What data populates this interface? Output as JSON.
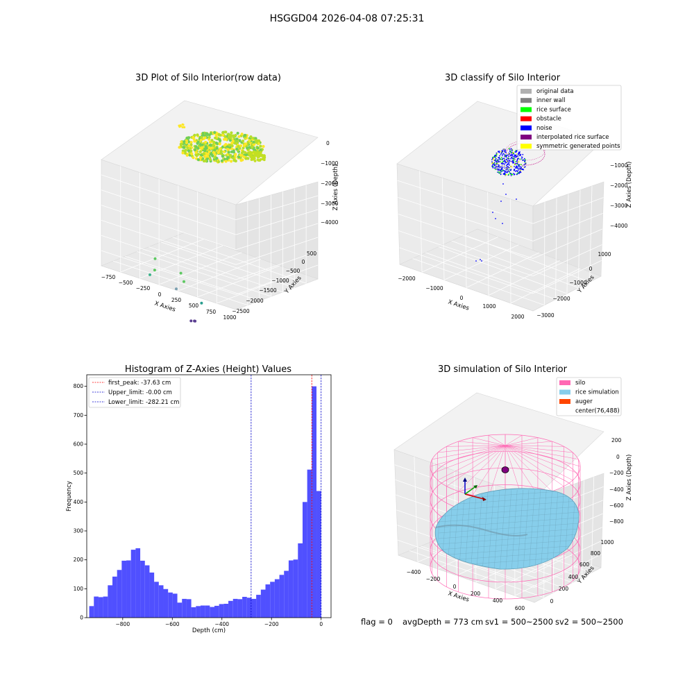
{
  "figure_title": "HSGGD04 2026-04-08 07:25:31",
  "footer": {
    "flag": "flag = 0",
    "avg_depth": "avgDepth = 773 cm",
    "sv1": "sv1 = 500~2500",
    "sv2": "sv2 = 500~2500"
  },
  "colors": {
    "histogram_bar": "#5050ff",
    "first_peak_line": "#ff0000",
    "limit_line": "#0000cc",
    "pane_back": "#f2f2f2",
    "pane_side": "#ebebeb",
    "pane_floor": "#e6e6e6",
    "silo": "#ff69b4",
    "rice_simulation": "#87ceeb",
    "auger": "#ff4500"
  },
  "chart_data": [
    {
      "type": "scatter",
      "projection": "3d",
      "title": "3D Plot of Silo Interior(row data)",
      "xlabel": "X Axies",
      "ylabel": "Y Axies",
      "zlabel": "Z Axies (Depth)",
      "x_ticks": [
        "−750",
        "−500",
        "−250",
        "0",
        "250",
        "500",
        "750",
        "1000"
      ],
      "y_ticks": [
        "500",
        "0",
        "−500",
        "−1000",
        "−1500",
        "−2000",
        "−2500"
      ],
      "z_ticks": [
        "0",
        "−1000",
        "−2000",
        "−3000",
        "−4000"
      ],
      "colormap": "viridis (by depth)",
      "surface_cluster": {
        "depth_range": [
          -300,
          0
        ],
        "colors": [
          "#fde725",
          "#b5de2b",
          "#6ece58"
        ]
      },
      "outlier_points": [
        {
          "x": 160,
          "y": -250,
          "z": -2300,
          "color": "#5ec962"
        },
        {
          "x": 40,
          "y": -500,
          "z": -2800,
          "color": "#5ec962"
        },
        {
          "x": 60,
          "y": -300,
          "z": -3200,
          "color": "#3bb28a"
        },
        {
          "x": 520,
          "y": -300,
          "z": -2650,
          "color": "#5ec962"
        },
        {
          "x": 520,
          "y": -400,
          "z": -3000,
          "color": "#5ec962"
        },
        {
          "x": 520,
          "y": -150,
          "z": -3600,
          "color": "#7a9fb0"
        },
        {
          "x": 600,
          "y": -800,
          "z": -3700,
          "color": "#2a9d8f"
        },
        {
          "x": -100,
          "y": -2000,
          "z": -4300,
          "color": "#5b3f91"
        },
        {
          "x": -50,
          "y": -2000,
          "z": -4250,
          "color": "#5b3f91"
        },
        {
          "x": -40,
          "y": -2000,
          "z": -4250,
          "color": "#5b3f91"
        }
      ]
    },
    {
      "type": "scatter",
      "projection": "3d",
      "title": "3D classify of Silo Interior",
      "xlabel": "X Axies",
      "ylabel": "Y Axies",
      "zlabel": "Z Axies (Depth)",
      "x_ticks": [
        "−2000",
        "−1000",
        "0",
        "1000",
        "2000"
      ],
      "y_ticks": [
        "1000",
        "0",
        "−1000",
        "−2000",
        "−3000"
      ],
      "z_ticks": [
        "0",
        "−1000",
        "−2000",
        "−3000",
        "−4000"
      ],
      "legend": [
        {
          "label": "original data",
          "color": "#b0b0b0"
        },
        {
          "label": "inner wall",
          "color": "#808080"
        },
        {
          "label": "rice surface",
          "color": "#00ff00"
        },
        {
          "label": "obstacle",
          "color": "#ff0000"
        },
        {
          "label": "noise",
          "color": "#0000ff"
        },
        {
          "label": "interpolated rice surface",
          "color": "#800080"
        },
        {
          "label": "symmetric generated points",
          "color": "#ffff00"
        }
      ],
      "legend_position": "upper right"
    },
    {
      "type": "bar",
      "title": "Histogram of Z-Axies (Height) Values",
      "xlabel": "Depth (cm)",
      "ylabel": "Frequency",
      "xlim": [
        -945,
        40
      ],
      "ylim": [
        0,
        840
      ],
      "x_ticks": [
        -800,
        -600,
        -400,
        -200,
        0
      ],
      "x_tick_labels": [
        "−800",
        "−600",
        "−400",
        "−200",
        "0"
      ],
      "y_ticks": [
        0,
        100,
        200,
        300,
        400,
        500,
        600,
        700,
        800
      ],
      "bin_start": -935,
      "bin_width": 18.7,
      "values": [
        40,
        73,
        71,
        73,
        112,
        142,
        165,
        197,
        198,
        235,
        240,
        197,
        181,
        156,
        124,
        112,
        99,
        87,
        83,
        52,
        65,
        64,
        36,
        40,
        42,
        42,
        37,
        41,
        47,
        48,
        58,
        65,
        64,
        72,
        69,
        65,
        79,
        97,
        115,
        124,
        133,
        148,
        162,
        198,
        201,
        257,
        400,
        512,
        800,
        438
      ],
      "vlines": [
        {
          "name": "first_peak",
          "value": -37.63,
          "label": "first_peak: -37.63 cm",
          "style": "red dashed"
        },
        {
          "name": "Upper_limit",
          "value": -0.0,
          "label": "Upper_limit: -0.00 cm",
          "style": "blue dashed"
        },
        {
          "name": "Lower_limit",
          "value": -282.21,
          "label": "Lower_limit: -282.21 cm",
          "style": "blue dashed"
        }
      ],
      "legend_position": "upper left",
      "grid": false
    },
    {
      "type": "surface",
      "projection": "3d",
      "title": "3D simulation of Silo Interior",
      "xlabel": "X Axies",
      "ylabel": "Y Axies",
      "zlabel": "Z Axies (Depth)",
      "x_ticks": [
        "−400",
        "−200",
        "0",
        "200",
        "400",
        "600"
      ],
      "y_ticks": [
        "0",
        "200",
        "400",
        "600",
        "800",
        "1000"
      ],
      "z_ticks": [
        "200",
        "0",
        "−200",
        "−400",
        "−600",
        "−800"
      ],
      "legend": [
        {
          "label": "silo",
          "color": "#ff69b4"
        },
        {
          "label": "rice simulation",
          "color": "#87ceeb"
        },
        {
          "label": "auger",
          "color": "#ff4500"
        },
        {
          "label": "center(76,488)",
          "color": ""
        }
      ],
      "legend_position": "upper right"
    }
  ]
}
